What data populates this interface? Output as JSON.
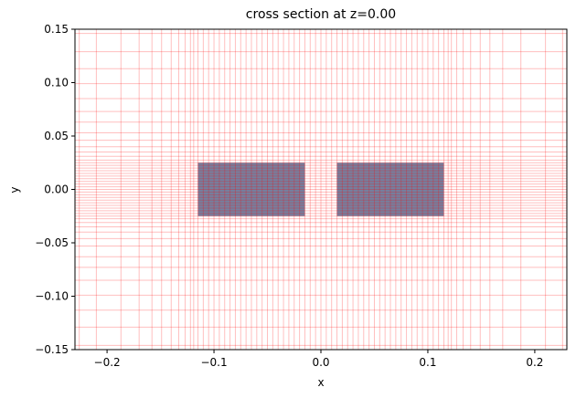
{
  "chart_data": {
    "type": "mesh",
    "title": "cross section at z=0.00",
    "x_label": "x",
    "y_label": "y",
    "xlim": [
      -0.23,
      0.23
    ],
    "ylim": [
      -0.15,
      0.15
    ],
    "xticks": [
      {
        "value": -0.2,
        "label": "−0.2"
      },
      {
        "value": -0.1,
        "label": "−0.1"
      },
      {
        "value": 0,
        "label": "0.0"
      },
      {
        "value": 0.1,
        "label": "0.1"
      },
      {
        "value": 0.2,
        "label": "0.2"
      }
    ],
    "yticks": [
      {
        "value": -0.15,
        "label": "−0.15"
      },
      {
        "value": -0.1,
        "label": "−0.10"
      },
      {
        "value": -0.05,
        "label": "−0.05"
      },
      {
        "value": 0,
        "label": "0.00"
      },
      {
        "value": 0.05,
        "label": "0.05"
      },
      {
        "value": 0.1,
        "label": "0.10"
      },
      {
        "value": 0.15,
        "label": "0.15"
      }
    ],
    "structure_color": "#7480a0",
    "mesh_color": "#ff0000",
    "structures": [
      {
        "x": [
          -0.115,
          -0.015
        ],
        "y": [
          -0.025,
          0.025
        ]
      },
      {
        "x": [
          0.015,
          0.115
        ],
        "y": [
          -0.025,
          0.025
        ]
      }
    ],
    "mesh_x": [
      -0.226,
      -0.21,
      -0.187,
      -0.17,
      -0.158,
      -0.149,
      -0.14,
      -0.133,
      -0.127,
      -0.122,
      -0.119,
      -0.115,
      -0.11,
      -0.105,
      -0.1,
      -0.095,
      -0.09,
      -0.085,
      -0.08,
      -0.075,
      -0.07,
      -0.065,
      -0.06,
      -0.055,
      -0.05,
      -0.045,
      -0.04,
      -0.035,
      -0.03,
      -0.025,
      -0.02,
      -0.015,
      -0.01,
      -0.005,
      0,
      0.005,
      0.01,
      0.015,
      0.02,
      0.025,
      0.03,
      0.035,
      0.04,
      0.045,
      0.05,
      0.055,
      0.06,
      0.065,
      0.07,
      0.075,
      0.08,
      0.085,
      0.09,
      0.095,
      0.1,
      0.105,
      0.11,
      0.115,
      0.119,
      0.122,
      0.127,
      0.133,
      0.14,
      0.149,
      0.158,
      0.17,
      0.187,
      0.21,
      0.226
    ],
    "mesh_y": [
      -0.146,
      -0.129,
      -0.113,
      -0.099,
      -0.085,
      -0.073,
      -0.063,
      -0.053,
      -0.046,
      -0.04,
      -0.035,
      -0.031,
      -0.0275,
      -0.025,
      -0.0225,
      -0.02,
      -0.0175,
      -0.015,
      -0.0125,
      -0.01,
      -0.0075,
      -0.005,
      -0.0025,
      0,
      0.0025,
      0.005,
      0.0075,
      0.01,
      0.0125,
      0.015,
      0.0175,
      0.02,
      0.0225,
      0.025,
      0.0275,
      0.031,
      0.035,
      0.04,
      0.046,
      0.053,
      0.063,
      0.073,
      0.085,
      0.099,
      0.113,
      0.129,
      0.146
    ]
  }
}
